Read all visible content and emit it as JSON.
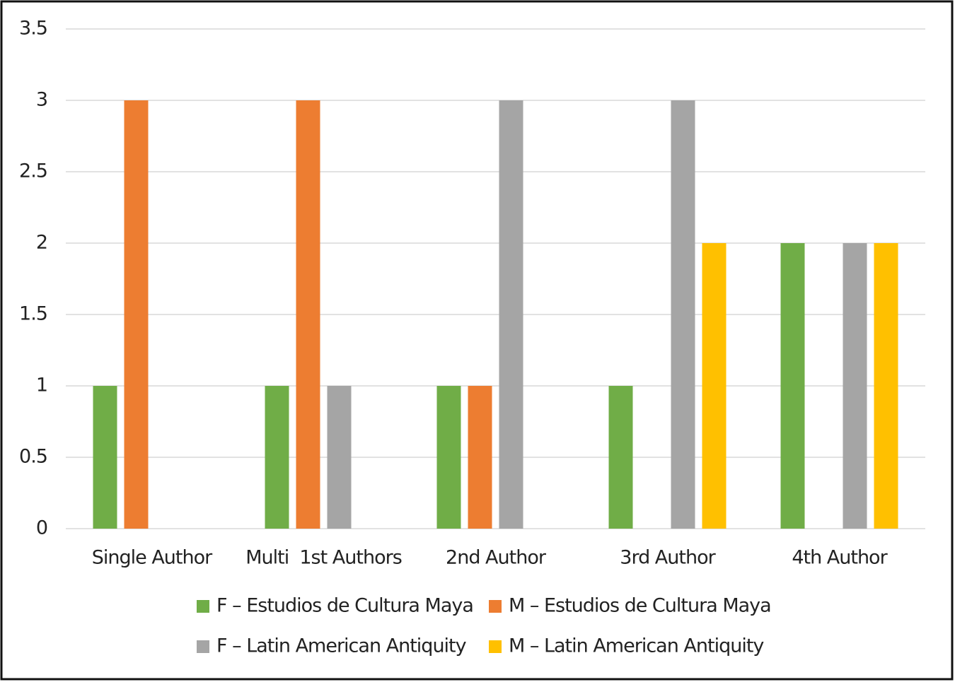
{
  "chart_data": {
    "type": "bar",
    "categories": [
      "Single Author",
      "Multi  1st Authors",
      "2nd Author",
      "3rd Author",
      "4th Author"
    ],
    "series": [
      {
        "name": "F – Estudios de Cultura Maya",
        "color": "#70ad47",
        "values": [
          1,
          1,
          1,
          1,
          2
        ]
      },
      {
        "name": "M – Estudios de Cultura Maya",
        "color": "#ed7d31",
        "values": [
          3,
          3,
          1,
          0,
          0
        ]
      },
      {
        "name": "F – Latin American Antiquity",
        "color": "#a5a5a5",
        "values": [
          0,
          1,
          3,
          3,
          2
        ]
      },
      {
        "name": "M – Latin American Antiquity",
        "color": "#ffc000",
        "values": [
          0,
          0,
          0,
          2,
          2
        ]
      }
    ],
    "ylim": [
      0,
      3.5
    ],
    "yticks": [
      0,
      0.5,
      1,
      1.5,
      2,
      2.5,
      3,
      3.5
    ],
    "grid": true,
    "legend": "bottom"
  }
}
